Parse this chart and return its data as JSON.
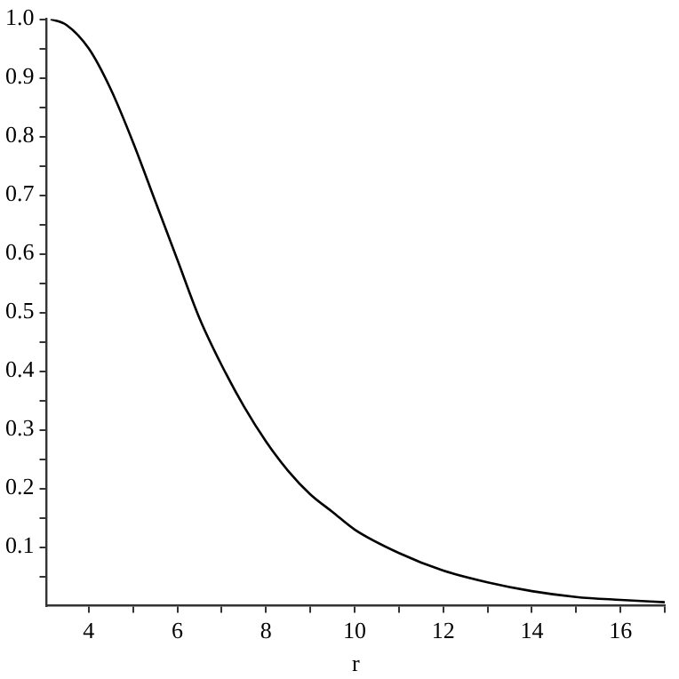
{
  "chart_data": {
    "type": "line",
    "xlabel": "r",
    "xlim": [
      3.05,
      17
    ],
    "ylim": [
      0,
      1
    ],
    "xticks": [
      4,
      {
        "value": 5,
        "label": null
      },
      6,
      {
        "value": 7,
        "label": null
      },
      8,
      {
        "value": 9,
        "label": null
      },
      10,
      {
        "value": 11,
        "label": null
      },
      12,
      {
        "value": 13,
        "label": null
      },
      14,
      {
        "value": 15,
        "label": null
      },
      16,
      {
        "value": 17,
        "label": null
      }
    ],
    "yticks": [
      {
        "value": 0.05,
        "label": null
      },
      0.1,
      {
        "value": 0.15,
        "label": null
      },
      0.2,
      {
        "value": 0.25,
        "label": null
      },
      0.3,
      {
        "value": 0.35,
        "label": null
      },
      0.4,
      {
        "value": 0.45,
        "label": null
      },
      0.5,
      {
        "value": 0.55,
        "label": null
      },
      0.6,
      {
        "value": 0.65,
        "label": null
      },
      0.7,
      {
        "value": 0.75,
        "label": null
      },
      0.8,
      {
        "value": 0.85,
        "label": null
      },
      0.9,
      {
        "value": 0.95,
        "label": null
      },
      {
        "value": 1,
        "label": "1.0"
      }
    ],
    "grid": false,
    "legend": false,
    "marker": "none",
    "line_style": "solid",
    "series": [
      {
        "color": "#000000",
        "x": [
          3.14,
          3.5,
          4,
          4.5,
          5,
          5.5,
          6,
          6.5,
          7,
          7.5,
          8,
          8.5,
          9,
          9.5,
          10,
          11,
          12,
          13,
          14,
          15,
          16,
          17
        ],
        "values": [
          1.0,
          0.99,
          0.95,
          0.88,
          0.79,
          0.69,
          0.59,
          0.49,
          0.41,
          0.34,
          0.28,
          0.23,
          0.19,
          0.16,
          0.13,
          0.09,
          0.06,
          0.04,
          0.025,
          0.015,
          0.01,
          0.006
        ]
      }
    ]
  }
}
